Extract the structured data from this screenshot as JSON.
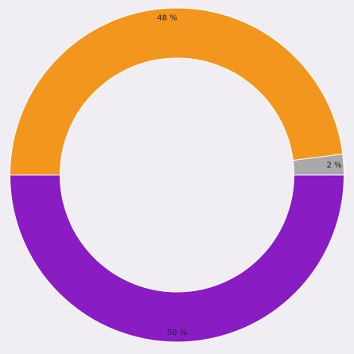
{
  "chart_data": {
    "type": "donut",
    "values": [
      48,
      2,
      50
    ],
    "value_labels": [
      "48 %",
      "2 %",
      "50 %"
    ],
    "colors": [
      "#f2961e",
      "#a9a9a9",
      "#8a1cc4"
    ]
  }
}
